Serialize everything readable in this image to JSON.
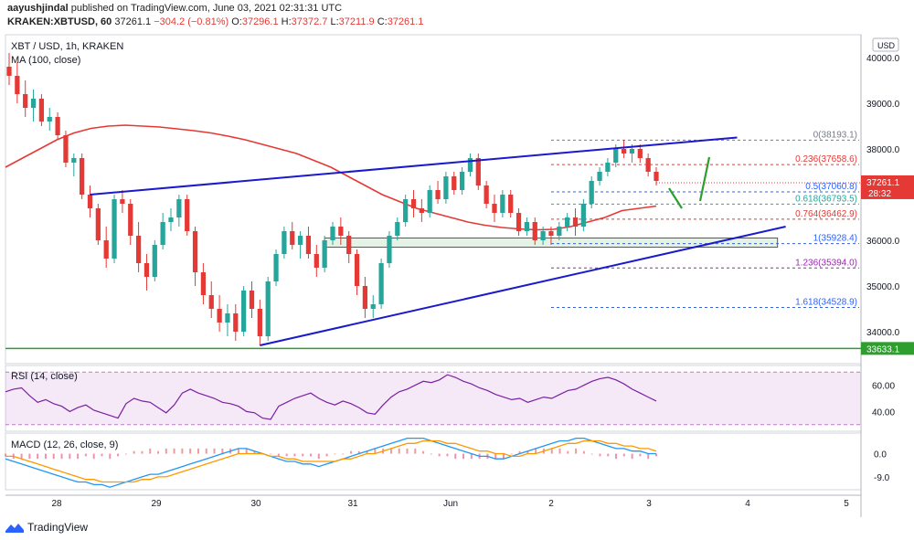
{
  "header": {
    "author": "aayushjindal",
    "published": "published on TradingView.com, June 03, 2021 02:31:31 UTC",
    "symbol": "KRAKEN:XBTUSD, 60",
    "last": "37261.1",
    "change": "−304.2 (−0.81%)",
    "open_label": "O:",
    "open": "37296.1",
    "high_label": "H:",
    "high": "37372.7",
    "low_label": "L:",
    "low": "37211.9",
    "close_label": "C:",
    "close": "37261.1"
  },
  "footer": {
    "brand": "TradingView"
  },
  "colors": {
    "up": "#26a69a",
    "down": "#e53935",
    "ma": "#e53935",
    "trendline": "#1a1acd",
    "support": "#2e9e2e",
    "rsi": "#7b1fa2",
    "macd": "#2196f3",
    "signal": "#ff9800"
  },
  "chart_data": [
    {
      "type": "candlestick",
      "title": "XBT / USD, 1h, KRAKEN",
      "indicator_label": "MA (100, close)",
      "currency_badge": "USD",
      "x_ticks": [
        "28",
        "29",
        "30",
        "31",
        "Jun",
        "2",
        "3",
        "4",
        "5"
      ],
      "y_ticks": [
        34000,
        35000,
        36000,
        37000,
        38000,
        39000,
        40000
      ],
      "ylim": [
        33300,
        40500
      ],
      "price_label": "37261.1",
      "countdown": "28:32",
      "support_level": 33633.1,
      "support_label": "33633.1",
      "candles_ohlc": [
        [
          39800,
          40100,
          39400,
          39600
        ],
        [
          39600,
          39900,
          39000,
          39200
        ],
        [
          39200,
          39500,
          38700,
          38900
        ],
        [
          38900,
          39300,
          38600,
          39100
        ],
        [
          39100,
          39200,
          38500,
          38600
        ],
        [
          38600,
          38900,
          38400,
          38700
        ],
        [
          38700,
          38800,
          38200,
          38300
        ],
        [
          38300,
          38400,
          37600,
          37700
        ],
        [
          37700,
          37900,
          37400,
          37800
        ],
        [
          37800,
          37900,
          36900,
          37000
        ],
        [
          37000,
          37200,
          36500,
          36700
        ],
        [
          36700,
          36800,
          35900,
          36000
        ],
        [
          36000,
          36300,
          35400,
          35600
        ],
        [
          35600,
          37000,
          35500,
          36900
        ],
        [
          36900,
          37100,
          36600,
          36800
        ],
        [
          36800,
          36900,
          35900,
          36100
        ],
        [
          36100,
          36400,
          35300,
          35500
        ],
        [
          35500,
          35700,
          34900,
          35200
        ],
        [
          35200,
          36000,
          35100,
          35900
        ],
        [
          35900,
          36600,
          35800,
          36400
        ],
        [
          36400,
          36700,
          36200,
          36500
        ],
        [
          36500,
          37000,
          36300,
          36900
        ],
        [
          36900,
          37000,
          36100,
          36200
        ],
        [
          36200,
          36300,
          35000,
          35300
        ],
        [
          35300,
          35500,
          34600,
          34800
        ],
        [
          34800,
          35100,
          34300,
          34500
        ],
        [
          34500,
          34800,
          34000,
          34200
        ],
        [
          34200,
          34600,
          33900,
          34400
        ],
        [
          34400,
          34600,
          33800,
          34000
        ],
        [
          34000,
          35000,
          33900,
          34900
        ],
        [
          34900,
          35100,
          34300,
          34500
        ],
        [
          34500,
          34700,
          33700,
          33900
        ],
        [
          33900,
          35200,
          33800,
          35100
        ],
        [
          35100,
          35800,
          35000,
          35700
        ],
        [
          35700,
          36300,
          35600,
          36200
        ],
        [
          36200,
          36400,
          35800,
          35900
        ],
        [
          35900,
          36200,
          35600,
          36100
        ],
        [
          36100,
          36300,
          35600,
          35700
        ],
        [
          35700,
          35900,
          35200,
          35400
        ],
        [
          35400,
          36100,
          35300,
          36000
        ],
        [
          36000,
          36400,
          35900,
          36300
        ],
        [
          36300,
          36500,
          35900,
          36100
        ],
        [
          36100,
          36200,
          35500,
          35700
        ],
        [
          35700,
          35800,
          34800,
          35000
        ],
        [
          35000,
          35200,
          34300,
          34500
        ],
        [
          34500,
          34800,
          34300,
          34600
        ],
        [
          34600,
          35600,
          34500,
          35500
        ],
        [
          35500,
          36200,
          35400,
          36100
        ],
        [
          36100,
          36500,
          36000,
          36400
        ],
        [
          36400,
          37000,
          36300,
          36900
        ],
        [
          36900,
          37100,
          36500,
          36700
        ],
        [
          36700,
          36900,
          36400,
          36600
        ],
        [
          36600,
          37200,
          36500,
          37100
        ],
        [
          37100,
          37300,
          36800,
          36900
        ],
        [
          36900,
          37500,
          36800,
          37400
        ],
        [
          37400,
          37500,
          37000,
          37100
        ],
        [
          37100,
          37600,
          37000,
          37500
        ],
        [
          37500,
          37900,
          37400,
          37800
        ],
        [
          37800,
          37900,
          37100,
          37200
        ],
        [
          37200,
          37300,
          36700,
          36800
        ],
        [
          36800,
          37000,
          36400,
          36600
        ],
        [
          36600,
          37100,
          36500,
          37000
        ],
        [
          37000,
          37100,
          36500,
          36600
        ],
        [
          36600,
          36700,
          36100,
          36200
        ],
        [
          36200,
          36500,
          36100,
          36400
        ],
        [
          36400,
          36500,
          35900,
          36000
        ],
        [
          36000,
          36300,
          35900,
          36200
        ],
        [
          36200,
          36300,
          35900,
          36100
        ],
        [
          36100,
          36400,
          36000,
          36300
        ],
        [
          36300,
          36600,
          36200,
          36500
        ],
        [
          36500,
          36700,
          36100,
          36300
        ],
        [
          36300,
          36900,
          36200,
          36800
        ],
        [
          36800,
          37400,
          36700,
          37300
        ],
        [
          37300,
          37600,
          37200,
          37500
        ],
        [
          37500,
          37800,
          37400,
          37700
        ],
        [
          37700,
          38100,
          37600,
          38000
        ],
        [
          38000,
          38200,
          37800,
          37900
        ],
        [
          37900,
          38100,
          37700,
          38000
        ],
        [
          38000,
          38100,
          37700,
          37800
        ],
        [
          37800,
          37900,
          37400,
          37500
        ],
        [
          37500,
          37600,
          37200,
          37300
        ]
      ],
      "ma_100": [
        37600,
        37800,
        38000,
        38200,
        38350,
        38450,
        38500,
        38520,
        38500,
        38480,
        38440,
        38400,
        38350,
        38280,
        38200,
        38100,
        38000,
        37900,
        37750,
        37600,
        37400,
        37200,
        37000,
        36850,
        36700,
        36600,
        36500,
        36400,
        36330,
        36280,
        36250,
        36230,
        36240,
        36300,
        36400,
        36500,
        36650,
        36700,
        36750
      ],
      "trendlines": [
        {
          "name": "upper",
          "from": [
            10,
            37000
          ],
          "to": [
            90,
            38250
          ]
        },
        {
          "name": "lower",
          "from": [
            31,
            33700
          ],
          "to": [
            96,
            36300
          ]
        }
      ],
      "fibonacci": [
        {
          "ratio": "0",
          "value": 38193.1,
          "label": "0(38193.1)",
          "color": "#787b86"
        },
        {
          "ratio": "0.236",
          "value": 37658.6,
          "label": "0.236(37658.6)",
          "color": "#e53935"
        },
        {
          "ratio": "0.5",
          "value": 37060.8,
          "label": "0.5(37060.8)",
          "color": "#2962ff"
        },
        {
          "ratio": "0.618",
          "value": 36793.5,
          "label": "0.618(36793.5)",
          "color": "#26a69a"
        },
        {
          "ratio": "0.764",
          "value": 36462.9,
          "label": "0.764(36462.9)",
          "color": "#e53935"
        },
        {
          "ratio": "1",
          "value": 35928.4,
          "label": "1(35928.4)",
          "color": "#2962ff"
        },
        {
          "ratio": "1.236",
          "value": 35394.0,
          "label": "1.236(35394.0)",
          "color": "#9c27b0"
        },
        {
          "ratio": "1.618",
          "value": 34528.9,
          "label": "1.618(34528.9)",
          "color": "#2962ff"
        }
      ],
      "rectangle": {
        "from": [
          39,
          36050
        ],
        "to": [
          95,
          35850
        ]
      }
    },
    {
      "type": "line",
      "title": "RSI (14, close)",
      "y_ticks": [
        40.0,
        60.0
      ],
      "ylim": [
        25,
        75
      ],
      "band": [
        30,
        70
      ],
      "values": [
        55,
        57,
        58,
        52,
        47,
        49,
        46,
        44,
        40,
        43,
        45,
        41,
        39,
        37,
        35,
        46,
        50,
        48,
        47,
        43,
        39,
        45,
        54,
        57,
        54,
        52,
        50,
        47,
        46,
        44,
        40,
        39,
        35,
        34,
        44,
        47,
        50,
        52,
        54,
        50,
        47,
        45,
        48,
        46,
        43,
        39,
        38,
        45,
        51,
        55,
        57,
        60,
        63,
        62,
        64,
        68,
        66,
        63,
        61,
        58,
        56,
        53,
        51,
        49,
        50,
        47,
        49,
        51,
        50,
        53,
        56,
        57,
        60,
        63,
        65,
        66,
        64,
        61,
        57,
        54,
        51,
        48
      ]
    },
    {
      "type": "line",
      "title": "MACD (12, 26, close, 9)",
      "y_ticks": [
        0.0,
        -9.0
      ],
      "ylim": [
        -14,
        8
      ],
      "macd": [
        -2,
        -3,
        -4,
        -5,
        -6,
        -7,
        -8,
        -9,
        -10,
        -11,
        -11,
        -12,
        -12,
        -13,
        -12,
        -11,
        -10,
        -9,
        -8,
        -8,
        -7,
        -6,
        -5,
        -4,
        -3,
        -2,
        -1,
        0,
        1,
        2,
        2,
        1,
        0,
        -1,
        -2,
        -3,
        -3,
        -4,
        -4,
        -5,
        -4,
        -3,
        -2,
        -1,
        0,
        1,
        2,
        3,
        4,
        5,
        6,
        6,
        6,
        5,
        4,
        3,
        2,
        1,
        0,
        -1,
        -1,
        -2,
        -2,
        -1,
        0,
        1,
        2,
        3,
        4,
        5,
        5,
        6,
        6,
        5,
        4,
        3,
        2,
        2,
        1,
        1,
        0,
        0
      ],
      "signal": [
        -1,
        -1,
        -2,
        -3,
        -4,
        -5,
        -6,
        -7,
        -8,
        -9,
        -10,
        -10,
        -11,
        -11,
        -11,
        -11,
        -11,
        -10,
        -10,
        -9,
        -9,
        -8,
        -7,
        -6,
        -5,
        -4,
        -3,
        -2,
        -1,
        0,
        0,
        0,
        0,
        -1,
        -1,
        -2,
        -2,
        -3,
        -3,
        -3,
        -3,
        -3,
        -2,
        -2,
        -1,
        0,
        0,
        1,
        2,
        3,
        4,
        4,
        5,
        5,
        5,
        4,
        4,
        3,
        2,
        1,
        1,
        0,
        0,
        -1,
        -1,
        0,
        0,
        1,
        2,
        3,
        4,
        4,
        5,
        5,
        5,
        4,
        4,
        3,
        3,
        2,
        2,
        1
      ]
    }
  ]
}
